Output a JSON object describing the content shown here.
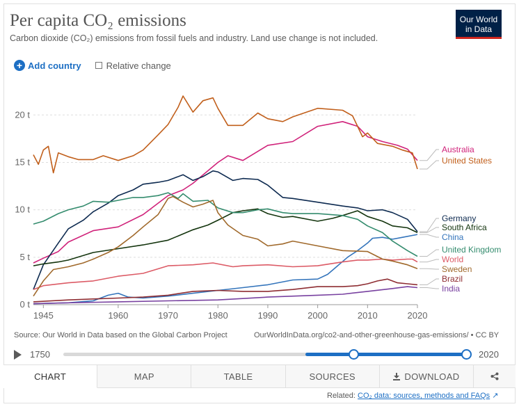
{
  "header": {
    "title": "Per capita CO₂ emissions",
    "subtitle": "Carbon dioxide (CO₂) emissions from fossil fuels and industry. Land use change is not included.",
    "logo": "Our World in Data"
  },
  "controls": {
    "add_country": "Add country",
    "relative_change": "Relative change"
  },
  "footer": {
    "source": "Source: Our World in Data based on the Global Carbon Project",
    "url": "OurWorldInData.org/co2-and-other-greenhouse-gas-emissions/ • CC BY"
  },
  "timeline": {
    "start": "1750",
    "end": "2020"
  },
  "tabs": {
    "chart": "CHART",
    "map": "MAP",
    "table": "TABLE",
    "sources": "SOURCES",
    "download": "DOWNLOAD"
  },
  "related": {
    "label": "Related:",
    "link": "CO₂ data: sources, methods and FAQs"
  },
  "chart_data": {
    "type": "line",
    "title": "Per capita CO₂ emissions",
    "xlim": [
      1943,
      2020
    ],
    "ylim": [
      0,
      22
    ],
    "x_ticks": [
      1945,
      1960,
      1970,
      1980,
      1990,
      2000,
      2010,
      2020
    ],
    "y_ticks": [
      0,
      5,
      10,
      15,
      20
    ],
    "y_tick_labels": [
      "0 t",
      "5 t",
      "10 t",
      "15 t",
      "20 t"
    ],
    "series": [
      {
        "name": "Australia",
        "color": "#d0227a",
        "x": [
          1943,
          1945,
          1948,
          1950,
          1955,
          1960,
          1965,
          1970,
          1973,
          1975,
          1980,
          1982,
          1985,
          1990,
          1995,
          2000,
          2005,
          2008,
          2010,
          2013,
          2016,
          2018,
          2020
        ],
        "y": [
          4.4,
          4.9,
          5.6,
          6.6,
          7.8,
          8.2,
          9.5,
          11.5,
          12.1,
          12.8,
          15.0,
          15.7,
          15.2,
          16.8,
          17.2,
          18.8,
          19.3,
          18.8,
          17.7,
          17.2,
          16.8,
          16.4,
          15.2
        ]
      },
      {
        "name": "United States",
        "color": "#c15f1b",
        "x": [
          1943,
          1944,
          1945,
          1946,
          1947,
          1948,
          1950,
          1952,
          1955,
          1957,
          1960,
          1963,
          1965,
          1968,
          1970,
          1972,
          1973,
          1975,
          1977,
          1979,
          1980,
          1982,
          1985,
          1988,
          1990,
          1993,
          1995,
          2000,
          2005,
          2007,
          2009,
          2010,
          2012,
          2015,
          2017,
          2019,
          2020
        ],
        "y": [
          15.8,
          14.8,
          16.3,
          16.7,
          13.9,
          16.0,
          15.6,
          15.3,
          15.3,
          15.7,
          15.2,
          15.7,
          16.3,
          17.9,
          19.0,
          20.8,
          22.0,
          20.3,
          21.5,
          21.8,
          20.7,
          18.9,
          18.9,
          20.2,
          19.6,
          19.3,
          19.8,
          20.7,
          20.5,
          19.9,
          17.7,
          18.1,
          17.0,
          16.7,
          16.3,
          16.0,
          14.3
        ]
      },
      {
        "name": "Germany",
        "color": "#0d2a50",
        "x": [
          1943,
          1945,
          1948,
          1950,
          1953,
          1955,
          1958,
          1960,
          1963,
          1965,
          1968,
          1970,
          1973,
          1975,
          1977,
          1979,
          1980,
          1983,
          1985,
          1988,
          1990,
          1993,
          1995,
          2000,
          2005,
          2008,
          2010,
          2013,
          2015,
          2018,
          2020
        ],
        "y": [
          1.6,
          4.2,
          6.5,
          8.0,
          8.9,
          9.8,
          10.7,
          11.5,
          12.1,
          12.7,
          12.9,
          13.1,
          13.7,
          13.1,
          13.5,
          14.1,
          14.0,
          13.1,
          13.3,
          13.2,
          12.6,
          11.3,
          11.2,
          10.8,
          10.4,
          10.2,
          9.9,
          10.0,
          9.7,
          9.0,
          7.7
        ]
      },
      {
        "name": "South Africa",
        "color": "#13340d",
        "x": [
          1943,
          1945,
          1948,
          1950,
          1955,
          1960,
          1965,
          1970,
          1975,
          1978,
          1980,
          1983,
          1985,
          1988,
          1990,
          1993,
          1995,
          2000,
          2003,
          2005,
          2008,
          2010,
          2013,
          2015,
          2018,
          2020
        ],
        "y": [
          4.1,
          4.3,
          4.5,
          4.7,
          5.5,
          5.9,
          6.3,
          6.8,
          7.9,
          8.4,
          8.9,
          9.7,
          9.9,
          10.1,
          9.6,
          9.2,
          9.3,
          8.8,
          9.1,
          9.4,
          9.9,
          9.3,
          8.8,
          8.3,
          8.1,
          7.6
        ]
      },
      {
        "name": "China",
        "color": "#3374bb",
        "x": [
          1943,
          1950,
          1955,
          1958,
          1960,
          1962,
          1965,
          1970,
          1975,
          1980,
          1985,
          1990,
          1995,
          2000,
          2002,
          2004,
          2006,
          2008,
          2010,
          2011,
          2013,
          2015,
          2017,
          2020
        ],
        "y": [
          0.1,
          0.2,
          0.4,
          1.0,
          1.2,
          0.8,
          0.7,
          0.9,
          1.2,
          1.5,
          1.8,
          2.1,
          2.6,
          2.7,
          3.2,
          4.1,
          5.0,
          5.7,
          6.5,
          7.0,
          7.1,
          6.9,
          7.1,
          7.4
        ]
      },
      {
        "name": "United Kingdom",
        "color": "#348c6e",
        "x": [
          1943,
          1945,
          1948,
          1950,
          1953,
          1955,
          1958,
          1960,
          1963,
          1965,
          1968,
          1970,
          1972,
          1973,
          1975,
          1978,
          1980,
          1983,
          1985,
          1988,
          1990,
          1993,
          1995,
          2000,
          2005,
          2008,
          2010,
          2013,
          2015,
          2018,
          2020
        ],
        "y": [
          8.5,
          8.8,
          9.6,
          10.0,
          10.4,
          10.9,
          10.8,
          11.0,
          11.3,
          11.3,
          11.5,
          11.8,
          11.2,
          11.7,
          10.9,
          11.0,
          10.2,
          9.7,
          9.7,
          10.0,
          10.1,
          9.7,
          9.6,
          9.6,
          9.4,
          9.0,
          8.3,
          7.6,
          6.7,
          5.7,
          5.1
        ]
      },
      {
        "name": "World",
        "color": "#dc5b66",
        "x": [
          1943,
          1945,
          1950,
          1955,
          1960,
          1965,
          1970,
          1975,
          1979,
          1980,
          1983,
          1985,
          1990,
          1995,
          2000,
          2005,
          2008,
          2010,
          2013,
          2015,
          2018,
          2019,
          2020
        ],
        "y": [
          1.6,
          2.0,
          2.3,
          2.5,
          3.0,
          3.3,
          4.1,
          4.2,
          4.4,
          4.3,
          4.0,
          4.1,
          4.2,
          4.0,
          4.1,
          4.5,
          4.7,
          4.7,
          4.8,
          4.7,
          4.8,
          4.8,
          4.5
        ]
      },
      {
        "name": "Sweden",
        "color": "#a0692b",
        "x": [
          1943,
          1945,
          1947,
          1950,
          1953,
          1955,
          1958,
          1960,
          1963,
          1965,
          1968,
          1970,
          1971,
          1973,
          1975,
          1977,
          1979,
          1980,
          1982,
          1985,
          1988,
          1990,
          1993,
          1995,
          2000,
          2005,
          2010,
          2013,
          2015,
          2018,
          2020
        ],
        "y": [
          0.9,
          2.5,
          3.7,
          4.0,
          4.4,
          4.8,
          5.5,
          6.1,
          7.3,
          8.2,
          9.5,
          11.2,
          11.4,
          10.8,
          10.3,
          10.6,
          11.0,
          9.7,
          8.4,
          7.3,
          6.9,
          6.2,
          6.4,
          6.7,
          6.2,
          5.7,
          5.6,
          4.8,
          4.6,
          4.2,
          3.8
        ]
      },
      {
        "name": "Brazil",
        "color": "#8e2d32",
        "x": [
          1943,
          1950,
          1955,
          1960,
          1965,
          1970,
          1975,
          1980,
          1985,
          1990,
          1995,
          2000,
          2005,
          2008,
          2010,
          2012,
          2014,
          2016,
          2018,
          2020
        ],
        "y": [
          0.3,
          0.5,
          0.6,
          0.7,
          0.8,
          1.0,
          1.4,
          1.5,
          1.4,
          1.4,
          1.6,
          1.9,
          1.9,
          2.0,
          2.2,
          2.5,
          2.7,
          2.3,
          2.2,
          2.1
        ]
      },
      {
        "name": "India",
        "color": "#7841a0",
        "x": [
          1943,
          1950,
          1960,
          1970,
          1980,
          1990,
          2000,
          2005,
          2010,
          2015,
          2018,
          2020
        ],
        "y": [
          0.1,
          0.2,
          0.3,
          0.4,
          0.5,
          0.8,
          1.0,
          1.1,
          1.4,
          1.7,
          1.9,
          1.8
        ]
      }
    ]
  }
}
